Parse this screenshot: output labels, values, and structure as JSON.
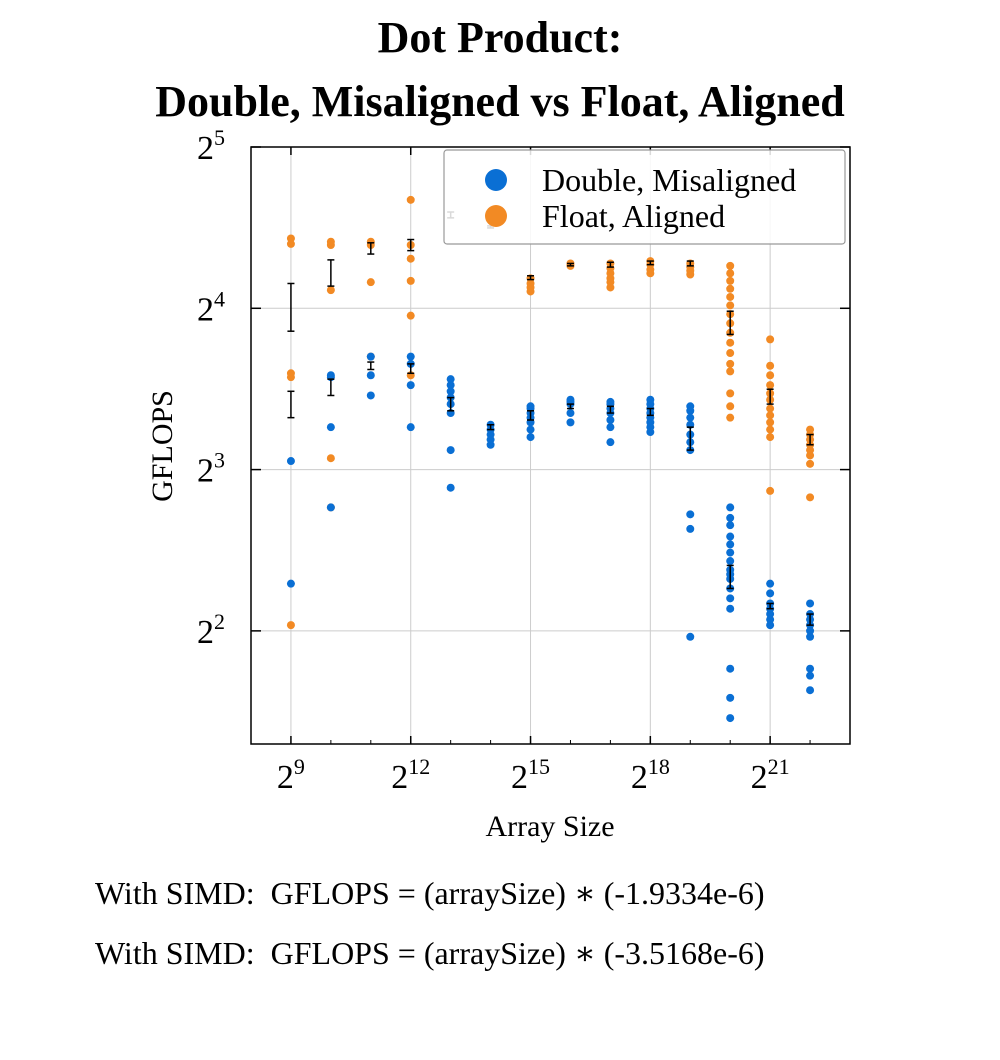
{
  "title": [
    "Dot Product:",
    "Double, Misaligned vs Float, Aligned"
  ],
  "formulas": [
    "With SIMD:  GFLOPS = (arraySize) ∗ (-1.9334e-6)",
    "With SIMD:  GFLOPS = (arraySize) ∗ (-3.5168e-6)"
  ],
  "colors": {
    "double": "#0a6fd4",
    "float": "#f28a24",
    "grid": "#cccccc",
    "error": "#000000"
  },
  "chart_data": {
    "type": "scatter",
    "xlabel": "Array Size",
    "ylabel": "GFLOPS",
    "x_scale": "log2",
    "y_scale": "log2",
    "xlim": [
      256,
      8388608
    ],
    "ylim": [
      2.46,
      32
    ],
    "x_ticks": [
      512,
      4096,
      32768,
      262144,
      2097152
    ],
    "x_tick_labels": [
      {
        "base": "2",
        "exp": "9"
      },
      {
        "base": "2",
        "exp": "12"
      },
      {
        "base": "2",
        "exp": "15"
      },
      {
        "base": "2",
        "exp": "18"
      },
      {
        "base": "2",
        "exp": "21"
      }
    ],
    "y_ticks": [
      4,
      8,
      16,
      32
    ],
    "y_tick_labels": [
      {
        "base": "2",
        "exp": "2"
      },
      {
        "base": "2",
        "exp": "3"
      },
      {
        "base": "2",
        "exp": "4"
      },
      {
        "base": "2",
        "exp": "5"
      }
    ],
    "grid": true,
    "legend_position": "top-right",
    "series": [
      {
        "name": "Double, Misaligned",
        "points": [
          {
            "x": 512,
            "ys": [
              8.3,
              4.9
            ]
          },
          {
            "x": 1024,
            "ys": [
              12.0,
              11.9,
              9.6,
              6.8
            ]
          },
          {
            "x": 2048,
            "ys": [
              13.0,
              12.0,
              11.0
            ]
          },
          {
            "x": 4096,
            "ys": [
              13.0,
              12.6,
              11.5,
              9.6
            ]
          },
          {
            "x": 8192,
            "ys": [
              11.8,
              11.5,
              11.2,
              10.9,
              10.6,
              10.2,
              8.7,
              7.4
            ]
          },
          {
            "x": 16384,
            "ys": [
              9.7,
              9.5,
              9.3,
              9.1,
              8.9
            ]
          },
          {
            "x": 32768,
            "ys": [
              10.5,
              10.4,
              10.2,
              10.0,
              9.8,
              9.5,
              9.2
            ]
          },
          {
            "x": 65536,
            "ys": [
              10.8,
              10.7,
              10.6,
              10.2,
              9.8
            ]
          },
          {
            "x": 131072,
            "ys": [
              10.7,
              10.6,
              10.4,
              10.2,
              9.9,
              9.6,
              9.0
            ]
          },
          {
            "x": 262144,
            "ys": [
              10.8,
              10.6,
              10.4,
              10.2,
              10.0,
              9.8,
              9.6,
              9.4
            ]
          },
          {
            "x": 524288,
            "ys": [
              10.5,
              10.3,
              10.0,
              9.7,
              9.3,
              9.0,
              8.7,
              6.6,
              6.2,
              3.9
            ]
          },
          {
            "x": 1048576,
            "ys": [
              6.8,
              6.5,
              6.3,
              6.0,
              5.8,
              5.6,
              5.4,
              5.2,
              5.1,
              5.0,
              4.8,
              4.6,
              4.4,
              3.4,
              3.0,
              2.75
            ]
          },
          {
            "x": 2097152,
            "ys": [
              4.9,
              4.7,
              4.5,
              4.4,
              4.3,
              4.2,
              4.1
            ]
          },
          {
            "x": 4194304,
            "ys": [
              4.5,
              4.3,
              4.2,
              4.1,
              4.0,
              3.9,
              3.4,
              3.3,
              3.1
            ]
          }
        ],
        "errorbars": [
          {
            "x": 512,
            "low": 10.0,
            "high": 11.2
          },
          {
            "x": 1024,
            "low": 11.0,
            "high": 11.8
          },
          {
            "x": 2048,
            "low": 12.3,
            "high": 12.7
          },
          {
            "x": 4096,
            "low": 12.1,
            "high": 12.6
          },
          {
            "x": 8192,
            "low": 10.3,
            "high": 10.9
          },
          {
            "x": 16384,
            "low": 9.5,
            "high": 9.7
          },
          {
            "x": 32768,
            "low": 9.9,
            "high": 10.3
          },
          {
            "x": 65536,
            "low": 10.4,
            "high": 10.6
          },
          {
            "x": 131072,
            "low": 10.2,
            "high": 10.5
          },
          {
            "x": 262144,
            "low": 10.1,
            "high": 10.4
          },
          {
            "x": 524288,
            "low": 8.7,
            "high": 9.6
          },
          {
            "x": 1048576,
            "low": 4.8,
            "high": 5.3
          },
          {
            "x": 2097152,
            "low": 4.4,
            "high": 4.5
          },
          {
            "x": 4194304,
            "low": 4.1,
            "high": 4.3
          }
        ]
      },
      {
        "name": "Float, Aligned",
        "points": [
          {
            "x": 512,
            "ys": [
              21.6,
              21.1,
              12.1,
              11.9,
              4.1
            ]
          },
          {
            "x": 1024,
            "ys": [
              21.3,
              21.0,
              17.3,
              8.4,
              6.8
            ]
          },
          {
            "x": 2048,
            "ys": [
              21.3,
              21.0,
              17.9,
              13.0
            ]
          },
          {
            "x": 4096,
            "ys": [
              25.5,
              21.0,
              19.8,
              18.0,
              15.5,
              12.0
            ]
          },
          {
            "x": 32768,
            "ys": [
              18.2,
              17.8,
              17.5,
              17.2
            ]
          },
          {
            "x": 65536,
            "ys": [
              19.4,
              19.2
            ]
          },
          {
            "x": 131072,
            "ys": [
              19.4,
              19.0,
              18.6,
              18.2,
              17.9,
              17.5
            ]
          },
          {
            "x": 262144,
            "ys": [
              19.6,
              19.3,
              18.9,
              18.6
            ]
          },
          {
            "x": 524288,
            "ys": [
              19.4,
              19.1,
              18.8,
              18.5
            ]
          },
          {
            "x": 1048576,
            "ys": [
              19.2,
              18.6,
              18.0,
              17.4,
              16.8,
              16.2,
              15.6,
              15.0,
              14.4,
              13.8,
              13.2,
              12.6,
              12.2,
              11.1,
              10.5,
              10.0
            ]
          },
          {
            "x": 2097152,
            "ys": [
              14.0,
              12.5,
              12.0,
              11.5,
              11.1,
              10.8,
              10.4,
              10.1,
              9.8,
              9.5,
              9.2,
              7.3
            ]
          },
          {
            "x": 4194304,
            "ys": [
              9.5,
              9.3,
              9.1,
              8.9,
              8.7,
              8.5,
              8.2,
              7.1
            ]
          }
        ],
        "errorbars": [
          {
            "x": 512,
            "low": 14.5,
            "high": 17.8
          },
          {
            "x": 1024,
            "low": 17.6,
            "high": 19.7
          },
          {
            "x": 2048,
            "low": 20.2,
            "high": 21.2
          },
          {
            "x": 4096,
            "low": 20.5,
            "high": 21.5
          },
          {
            "x": 8192,
            "low": 23.6,
            "high": 24.2
          },
          {
            "x": 16384,
            "low": 22.6,
            "high": 22.8
          },
          {
            "x": 32768,
            "low": 18.1,
            "high": 18.4
          },
          {
            "x": 65536,
            "low": 19.2,
            "high": 19.4
          },
          {
            "x": 131072,
            "low": 19.1,
            "high": 19.5
          },
          {
            "x": 262144,
            "low": 19.3,
            "high": 19.6
          },
          {
            "x": 524288,
            "low": 19.2,
            "high": 19.6
          },
          {
            "x": 1048576,
            "low": 14.3,
            "high": 15.8
          },
          {
            "x": 2097152,
            "low": 10.6,
            "high": 11.3
          },
          {
            "x": 4194304,
            "low": 8.9,
            "high": 9.3
          }
        ]
      }
    ]
  }
}
